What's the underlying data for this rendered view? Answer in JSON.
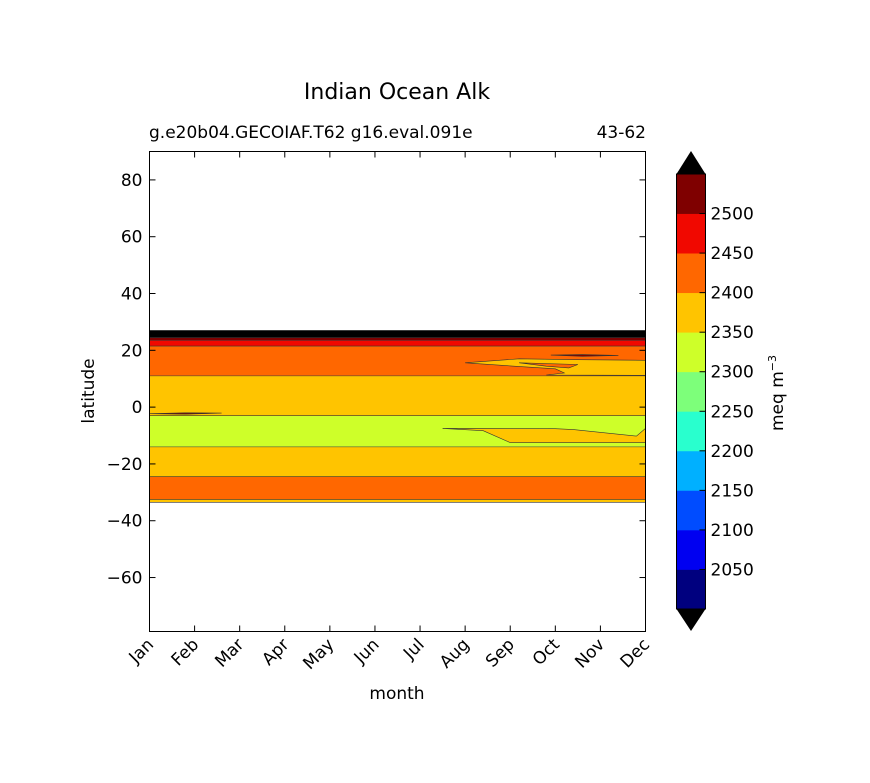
{
  "chart_data": {
    "type": "heatmap",
    "title": "Indian Ocean Alk",
    "subtitle_left": "g.e20b04.GECOIAF.T62 g16.eval.091e",
    "subtitle_right": "43-62",
    "xlabel": "month",
    "ylabel": "latitude",
    "x_ticks": [
      "Jan",
      "Feb",
      "Mar",
      "Apr",
      "May",
      "Jun",
      "Jul",
      "Aug",
      "Sep",
      "Oct",
      "Nov",
      "Dec"
    ],
    "xlim": [
      1,
      12
    ],
    "ylim": [
      -79,
      90
    ],
    "y_ticks": [
      80,
      60,
      40,
      20,
      0,
      -20,
      -40,
      -60
    ],
    "y_tick_labels": [
      "80",
      "60",
      "40",
      "20",
      "0",
      "−20",
      "−40",
      "−60"
    ],
    "colorbar": {
      "label": "meq m",
      "label_exponent": "−3",
      "levels": [
        2000,
        2050,
        2100,
        2150,
        2200,
        2250,
        2300,
        2350,
        2400,
        2450,
        2500,
        2550
      ],
      "tick_labels": [
        "2050",
        "2100",
        "2150",
        "2200",
        "2250",
        "2300",
        "2350",
        "2400",
        "2450",
        "2500"
      ],
      "colors": [
        "#00007f",
        "#0000f1",
        "#004cff",
        "#00b0ff",
        "#29ffce",
        "#7dff7a",
        "#ceff29",
        "#ffc400",
        "#ff6700",
        "#f10800",
        "#7f0000"
      ],
      "extend_colors": {
        "under": "#000000",
        "over": "#000000"
      }
    },
    "bands": [
      {
        "lat_bottom": -33.5,
        "lat_top": -32.5,
        "color": "#ffc400"
      },
      {
        "lat_bottom": -32.5,
        "lat_top": -24.5,
        "color": "#ff6700"
      },
      {
        "lat_bottom": -24.5,
        "lat_top": -14,
        "color": "#ffc400"
      },
      {
        "lat_bottom": -14,
        "lat_top": -3,
        "color": "#ceff29"
      },
      {
        "lat_bottom": -3,
        "lat_top": 11,
        "color": "#ffc400"
      },
      {
        "lat_bottom": 11,
        "lat_top": 21.5,
        "color": "#ff6700"
      },
      {
        "lat_bottom": 21.5,
        "lat_top": 23.5,
        "color": "#f10800"
      },
      {
        "lat_bottom": 23.5,
        "lat_top": 24.5,
        "color": "#7f0000"
      },
      {
        "lat_bottom": 24.5,
        "lat_top": 27,
        "color": "#000000"
      }
    ],
    "patches": [
      {
        "color": "#ffc400",
        "points": [
          [
            7.5,
            -7.5
          ],
          [
            8.4,
            -8.3
          ],
          [
            9.0,
            -12.5
          ],
          [
            12,
            -12.5
          ],
          [
            12,
            -7.5
          ],
          [
            11.8,
            -10.2
          ],
          [
            11.2,
            -9.2
          ],
          [
            10.4,
            -7.9
          ],
          [
            10.0,
            -7.6
          ]
        ]
      },
      {
        "color": "#ffc400",
        "points": [
          [
            8.0,
            15.6
          ],
          [
            9.0,
            14.5
          ],
          [
            10.0,
            13.5
          ],
          [
            10.2,
            12.0
          ],
          [
            9.8,
            11.3
          ],
          [
            12,
            11.2
          ],
          [
            12,
            16.5
          ],
          [
            10.5,
            16.7
          ],
          [
            9.2,
            17.0
          ]
        ]
      },
      {
        "color": "#ff6700",
        "points": [
          [
            9.2,
            15.6
          ],
          [
            10.5,
            15.0
          ],
          [
            10.3,
            13.8
          ],
          [
            9.8,
            14.4
          ]
        ]
      },
      {
        "color": "#7f0000",
        "points": [
          [
            9.9,
            18.3
          ],
          [
            10.6,
            18.5
          ],
          [
            11.4,
            18.2
          ],
          [
            10.6,
            17.9
          ]
        ]
      },
      {
        "color": "#7f0000",
        "points": [
          [
            1.0,
            -2.3
          ],
          [
            1.8,
            -2.0
          ],
          [
            2.6,
            -2.1
          ],
          [
            1.8,
            -2.5
          ]
        ]
      }
    ]
  }
}
